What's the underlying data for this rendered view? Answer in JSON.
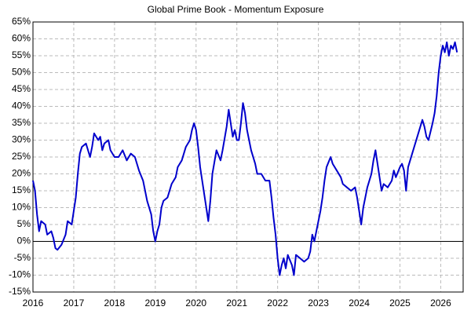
{
  "chart_data": {
    "type": "line",
    "title": "Global Prime Book - Momentum Exposure",
    "x": [
      2016.0,
      2016.05,
      2016.1,
      2016.15,
      2016.2,
      2016.3,
      2016.35,
      2016.45,
      2016.5,
      2016.55,
      2016.6,
      2016.7,
      2016.8,
      2016.85,
      2016.95,
      2017.0,
      2017.05,
      2017.1,
      2017.15,
      2017.2,
      2017.3,
      2017.4,
      2017.45,
      2017.5,
      2017.6,
      2017.65,
      2017.7,
      2017.75,
      2017.85,
      2017.9,
      2018.0,
      2018.1,
      2018.2,
      2018.3,
      2018.4,
      2018.5,
      2018.6,
      2018.7,
      2018.8,
      2018.9,
      2018.95,
      2019.0,
      2019.05,
      2019.1,
      2019.15,
      2019.2,
      2019.3,
      2019.4,
      2019.5,
      2019.55,
      2019.65,
      2019.75,
      2019.85,
      2019.9,
      2019.95,
      2020.0,
      2020.05,
      2020.1,
      2020.15,
      2020.2,
      2020.3,
      2020.35,
      2020.4,
      2020.5,
      2020.6,
      2020.65,
      2020.75,
      2020.8,
      2020.85,
      2020.9,
      2020.95,
      2021.0,
      2021.05,
      2021.1,
      2021.15,
      2021.2,
      2021.25,
      2021.35,
      2021.45,
      2021.5,
      2021.6,
      2021.7,
      2021.8,
      2021.85,
      2021.9,
      2021.95,
      2022.0,
      2022.05,
      2022.1,
      2022.15,
      2022.2,
      2022.25,
      2022.35,
      2022.4,
      2022.45,
      2022.55,
      2022.65,
      2022.75,
      2022.8,
      2022.85,
      2022.9,
      2022.95,
      2023.05,
      2023.1,
      2023.15,
      2023.2,
      2023.3,
      2023.35,
      2023.45,
      2023.55,
      2023.6,
      2023.7,
      2023.8,
      2023.9,
      2023.95,
      2024.0,
      2024.05,
      2024.1,
      2024.2,
      2024.3,
      2024.35,
      2024.4,
      2024.45,
      2024.5,
      2024.55,
      2024.6,
      2024.7,
      2024.8,
      2024.85,
      2024.9,
      2025.0,
      2025.05,
      2025.1,
      2025.15,
      2025.2,
      2025.3,
      2025.35,
      2025.45,
      2025.55,
      2025.6,
      2025.65,
      2025.7,
      2025.8,
      2025.85,
      2025.9,
      2025.95,
      2026.0,
      2026.05,
      2026.1,
      2026.15,
      2026.2,
      2026.25,
      2026.3,
      2026.35,
      2026.4
    ],
    "values": [
      18,
      15,
      8,
      3,
      6,
      5,
      2,
      3,
      1,
      -2,
      -2.5,
      -1,
      2,
      6,
      5,
      9,
      13,
      20,
      26,
      28,
      29,
      25,
      28,
      32,
      30,
      31,
      27,
      29,
      30,
      27,
      25,
      25,
      27,
      24,
      26,
      25,
      21,
      18,
      12,
      8,
      3,
      0,
      3,
      5,
      10,
      12,
      13,
      17,
      19,
      22,
      24,
      28,
      30,
      33,
      35,
      33,
      28,
      22,
      18,
      14,
      6,
      12,
      20,
      27,
      24,
      27,
      34,
      39,
      35,
      31,
      33,
      30,
      30,
      35,
      41,
      38,
      33,
      27,
      23,
      20,
      20,
      18,
      18,
      13,
      7,
      2,
      -5,
      -10,
      -7,
      -5,
      -8,
      -4,
      -7,
      -10,
      -4,
      -5,
      -6,
      -5,
      -3,
      2,
      0,
      3,
      9,
      13,
      18,
      22,
      25,
      23,
      21,
      19,
      17,
      16,
      15,
      16,
      13,
      9,
      5,
      10,
      16,
      20,
      24,
      27,
      23,
      19,
      15,
      17,
      16,
      18,
      21,
      19,
      22,
      23,
      21,
      15,
      22,
      26,
      28,
      32,
      36,
      34,
      31,
      30,
      35,
      38,
      43,
      50,
      55,
      58,
      56,
      59,
      55,
      58,
      57,
      59,
      56
    ],
    "color": "#0000cc",
    "xlim": [
      2016,
      2026.55
    ],
    "xticks": [
      2016,
      2017,
      2018,
      2019,
      2020,
      2021,
      2022,
      2023,
      2024,
      2025,
      2026
    ],
    "ylim": [
      -15,
      65
    ],
    "yticks": [
      {
        "value": -15,
        "label": "-15%"
      },
      {
        "value": -10,
        "label": "-10%"
      },
      {
        "value": -5,
        "label": "-5%"
      },
      {
        "value": 0,
        "label": "0%"
      },
      {
        "value": 5,
        "label": "5%"
      },
      {
        "value": 10,
        "label": "10%"
      },
      {
        "value": 15,
        "label": "15%"
      },
      {
        "value": 20,
        "label": "20%"
      },
      {
        "value": 25,
        "label": "25%"
      },
      {
        "value": 30,
        "label": "30%"
      },
      {
        "value": 35,
        "label": "35%"
      },
      {
        "value": 40,
        "label": "40%"
      },
      {
        "value": 45,
        "label": "45%"
      },
      {
        "value": 50,
        "label": "50%"
      },
      {
        "value": 55,
        "label": "55%"
      },
      {
        "value": 60,
        "label": "60%"
      },
      {
        "value": 65,
        "label": "65%"
      }
    ],
    "grid": true
  }
}
